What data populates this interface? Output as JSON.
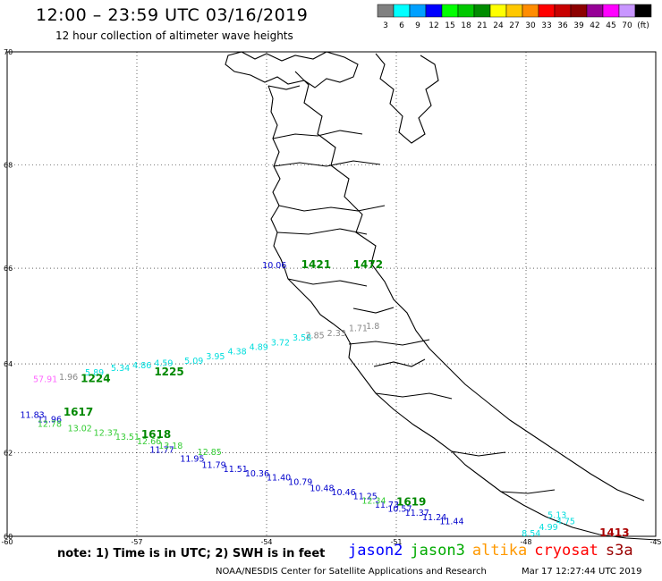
{
  "header": {
    "title": "12:00 – 23:59 UTC 03/16/2019",
    "subtitle": "12 hour collection of altimeter wave heights"
  },
  "colorbar": {
    "colors": [
      "#808080",
      "#00ffff",
      "#00a0ff",
      "#0000ff",
      "#00ff00",
      "#00c800",
      "#008c00",
      "#ffff00",
      "#ffc800",
      "#ff8c00",
      "#ff0000",
      "#c80000",
      "#8c0000",
      "#960096",
      "#ff00ff",
      "#c896ff",
      "#000000"
    ],
    "labels": [
      "3",
      "6",
      "9",
      "12",
      "15",
      "18",
      "21",
      "24",
      "27",
      "30",
      "33",
      "36",
      "39",
      "42",
      "45",
      "70",
      "(ft)"
    ]
  },
  "axes": {
    "x_ticks": [
      "-60",
      "-57",
      "-54",
      "-51",
      "-48",
      "-45"
    ],
    "y_ticks": [
      "70",
      "68",
      "66",
      "64",
      "62",
      "60"
    ]
  },
  "tracks": [
    {
      "satellite": "jason2",
      "color": "#0000cc",
      "points": [
        {
          "lon": -54.1,
          "lat": 66.0,
          "swh": "10.06"
        },
        {
          "lon": -59.7,
          "lat": 62.8,
          "swh": "11.83"
        },
        {
          "lon": -59.3,
          "lat": 62.7,
          "swh": "11.96"
        },
        {
          "lon": -56.7,
          "lat": 62.0,
          "swh": "11.77"
        },
        {
          "lon": -56.0,
          "lat": 61.8,
          "swh": "11.95"
        },
        {
          "lon": -55.5,
          "lat": 61.65,
          "swh": "11.79"
        },
        {
          "lon": -55.0,
          "lat": 61.55,
          "swh": "11.51"
        },
        {
          "lon": -54.5,
          "lat": 61.45,
          "swh": "10.36"
        },
        {
          "lon": -54.0,
          "lat": 61.35,
          "swh": "11.40"
        },
        {
          "lon": -53.5,
          "lat": 61.25,
          "swh": "10.79"
        },
        {
          "lon": -53.0,
          "lat": 61.1,
          "swh": "10.48"
        },
        {
          "lon": -52.5,
          "lat": 61.0,
          "swh": "10.46"
        },
        {
          "lon": -52.0,
          "lat": 60.9,
          "swh": "11.25"
        },
        {
          "lon": -51.5,
          "lat": 60.7,
          "swh": "11.73"
        },
        {
          "lon": -51.2,
          "lat": 60.6,
          "swh": "10.57"
        },
        {
          "lon": -50.8,
          "lat": 60.5,
          "swh": "11.37"
        },
        {
          "lon": -50.4,
          "lat": 60.4,
          "swh": "11.24"
        },
        {
          "lon": -50.0,
          "lat": 60.3,
          "swh": "11.44"
        }
      ]
    },
    {
      "satellite": "jason3",
      "color": "#33cc33",
      "points": [
        {
          "lon": -59.3,
          "lat": 62.6,
          "swh": "12.78"
        },
        {
          "lon": -58.6,
          "lat": 62.5,
          "swh": "13.02"
        },
        {
          "lon": -58.0,
          "lat": 62.4,
          "swh": "12.37"
        },
        {
          "lon": -57.5,
          "lat": 62.3,
          "swh": "13.51"
        },
        {
          "lon": -57.0,
          "lat": 62.2,
          "swh": "12.66"
        },
        {
          "lon": -56.5,
          "lat": 62.1,
          "swh": "13.18"
        },
        {
          "lon": -55.6,
          "lat": 61.95,
          "swh": "12.85"
        },
        {
          "lon": -51.8,
          "lat": 60.8,
          "swh": "12.34"
        }
      ]
    },
    {
      "satellite": "cryosat",
      "color": "#00dddd",
      "points": [
        {
          "lon": -58.2,
          "lat": 63.75,
          "swh": "5.89"
        },
        {
          "lon": -57.6,
          "lat": 63.85,
          "swh": "5.34"
        },
        {
          "lon": -57.1,
          "lat": 63.9,
          "swh": "4.86"
        },
        {
          "lon": -56.6,
          "lat": 63.95,
          "swh": "4.59"
        },
        {
          "lon": -55.9,
          "lat": 64.0,
          "swh": "5.09"
        },
        {
          "lon": -55.4,
          "lat": 64.1,
          "swh": "3.95"
        },
        {
          "lon": -54.9,
          "lat": 64.2,
          "swh": "4.38"
        },
        {
          "lon": -54.4,
          "lat": 64.3,
          "swh": "4.89"
        },
        {
          "lon": -53.9,
          "lat": 64.4,
          "swh": "3.72"
        },
        {
          "lon": -53.4,
          "lat": 64.5,
          "swh": "3.58"
        },
        {
          "lon": -47.5,
          "lat": 60.45,
          "swh": "5.13"
        },
        {
          "lon": -47.3,
          "lat": 60.3,
          "swh": "4.75"
        },
        {
          "lon": -47.7,
          "lat": 60.15,
          "swh": "4.99"
        },
        {
          "lon": -48.1,
          "lat": 60.0,
          "swh": "8.54"
        }
      ]
    },
    {
      "satellite": "s3a",
      "color": "#888888",
      "points": [
        {
          "lon": -58.8,
          "lat": 63.65,
          "swh": "1.96"
        },
        {
          "lon": -53.1,
          "lat": 64.55,
          "swh": "2.85"
        },
        {
          "lon": -52.6,
          "lat": 64.6,
          "swh": "2.33"
        },
        {
          "lon": -52.1,
          "lat": 64.7,
          "swh": "1.71"
        },
        {
          "lon": -51.7,
          "lat": 64.75,
          "swh": "1.8"
        }
      ]
    },
    {
      "satellite": "altika",
      "color": "#ff66ff",
      "points": [
        {
          "lon": -59.4,
          "lat": 63.6,
          "swh": "57.91"
        }
      ]
    }
  ],
  "time_labels": [
    {
      "text": "1224",
      "color": "#008800",
      "lon": -58.3,
      "lat": 63.6
    },
    {
      "text": "1225",
      "color": "#008800",
      "lon": -56.6,
      "lat": 63.75
    },
    {
      "text": "1617",
      "color": "#008800",
      "lon": -58.7,
      "lat": 62.85
    },
    {
      "text": "1618",
      "color": "#008800",
      "lon": -56.9,
      "lat": 62.35
    },
    {
      "text": "1421",
      "color": "#008800",
      "lon": -53.2,
      "lat": 66.0
    },
    {
      "text": "1472",
      "color": "#008800",
      "lon": -52.0,
      "lat": 66.0
    },
    {
      "text": "1619",
      "color": "#008800",
      "lon": -51.0,
      "lat": 60.75
    },
    {
      "text": "1413",
      "color": "#aa0000",
      "lon": -46.3,
      "lat": 60.0
    }
  ],
  "footer": {
    "note": "note: 1) Time is in UTC; 2) SWH is in feet",
    "legend": [
      {
        "label": "jason2",
        "color": "#0000ff"
      },
      {
        "label": "jason3",
        "color": "#00aa00"
      },
      {
        "label": "altika",
        "color": "#ff9900"
      },
      {
        "label": "cryosat",
        "color": "#ff0000"
      },
      {
        "label": "s3a",
        "color": "#990000"
      }
    ],
    "credit": "NOAA/NESDIS Center for Satellite Applications and Research",
    "timestamp": "Mar 17 12:27:44 UTC 2019"
  }
}
